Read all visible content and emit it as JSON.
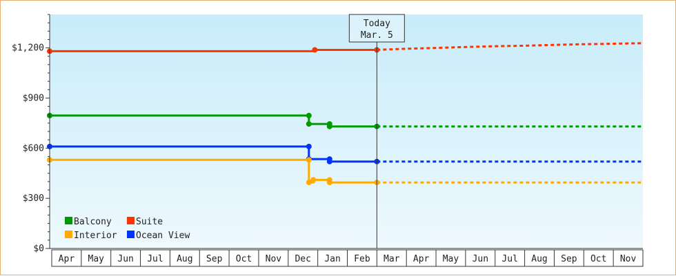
{
  "chart_data": {
    "type": "line",
    "step": true,
    "ylim": [
      0,
      1400
    ],
    "y_ticks": [
      0,
      300,
      600,
      900,
      1200
    ],
    "y_tick_labels": [
      "$0",
      "$300",
      "$600",
      "$900",
      "$1,200"
    ],
    "x_domain": [
      0,
      20
    ],
    "months": [
      "Apr",
      "May",
      "Jun",
      "Jul",
      "Aug",
      "Sep",
      "Oct",
      "Nov",
      "Dec",
      "Jan",
      "Feb",
      "Mar",
      "Apr",
      "May",
      "Jun",
      "Jul",
      "Aug",
      "Sep",
      "Oct",
      "Nov"
    ],
    "today": {
      "x": 11,
      "line1": "Today",
      "line2": "Mar. 5"
    },
    "grid": false,
    "legend_position": "bottom-left",
    "series": [
      {
        "name": "Suite",
        "color": "#ff3300",
        "points": [
          [
            0,
            1180
          ],
          [
            8.9,
            1180
          ],
          [
            8.9,
            1188
          ],
          [
            11,
            1188
          ]
        ],
        "markers": [
          [
            0,
            1180
          ],
          [
            8.9,
            1188
          ],
          [
            11,
            1188
          ]
        ],
        "forecast": [
          [
            11,
            1188
          ],
          [
            12,
            1195
          ],
          [
            13,
            1200
          ],
          [
            14,
            1205
          ],
          [
            15,
            1210
          ],
          [
            16,
            1213
          ],
          [
            17,
            1218
          ],
          [
            18,
            1222
          ],
          [
            19,
            1225
          ],
          [
            20,
            1228
          ]
        ]
      },
      {
        "name": "Balcony",
        "color": "#009900",
        "points": [
          [
            0,
            795
          ],
          [
            8.7,
            795
          ],
          [
            8.7,
            745
          ],
          [
            9.4,
            745
          ],
          [
            9.4,
            730
          ],
          [
            11,
            730
          ]
        ],
        "markers": [
          [
            0,
            795
          ],
          [
            8.7,
            795
          ],
          [
            8.7,
            745
          ],
          [
            9.4,
            745
          ],
          [
            9.4,
            730
          ],
          [
            11,
            730
          ]
        ],
        "forecast": [
          [
            11,
            730
          ],
          [
            20,
            730
          ]
        ]
      },
      {
        "name": "Ocean View",
        "color": "#0033ff",
        "points": [
          [
            0,
            610
          ],
          [
            8.7,
            610
          ],
          [
            8.7,
            535
          ],
          [
            9.4,
            535
          ],
          [
            9.4,
            520
          ],
          [
            11,
            520
          ]
        ],
        "markers": [
          [
            0,
            610
          ],
          [
            8.7,
            610
          ],
          [
            8.7,
            535
          ],
          [
            9.4,
            535
          ],
          [
            9.4,
            520
          ],
          [
            11,
            520
          ]
        ],
        "forecast": [
          [
            11,
            520
          ],
          [
            20,
            520
          ]
        ]
      },
      {
        "name": "Interior",
        "color": "#ffaa00",
        "points": [
          [
            0,
            530
          ],
          [
            8.7,
            530
          ],
          [
            8.7,
            395
          ],
          [
            8.85,
            395
          ],
          [
            8.85,
            410
          ],
          [
            9.4,
            410
          ],
          [
            9.4,
            395
          ],
          [
            11,
            395
          ]
        ],
        "markers": [
          [
            0,
            530
          ],
          [
            8.7,
            530
          ],
          [
            8.7,
            395
          ],
          [
            8.85,
            410
          ],
          [
            9.4,
            410
          ],
          [
            9.4,
            395
          ],
          [
            11,
            395
          ]
        ],
        "forecast": [
          [
            11,
            395
          ],
          [
            20,
            395
          ]
        ]
      }
    ],
    "legend": [
      {
        "name": "Balcony",
        "color": "#009900"
      },
      {
        "name": "Suite",
        "color": "#ff3300"
      },
      {
        "name": "Interior",
        "color": "#ffaa00"
      },
      {
        "name": "Ocean View",
        "color": "#0033ff"
      }
    ]
  }
}
